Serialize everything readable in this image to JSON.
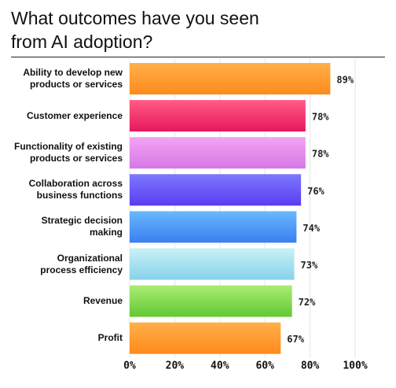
{
  "chart_data": {
    "type": "bar",
    "orientation": "horizontal",
    "title": "What outcomes have you seen\nfrom AI adoption?",
    "categories": [
      "Ability to develop new\nproducts or services",
      "Customer experience",
      "Functionality of existing\nproducts or services",
      "Collaboration across\nbusiness functions",
      "Strategic decision\nmaking",
      "Organizational\nprocess efficiency",
      "Revenue",
      "Profit"
    ],
    "values": [
      89,
      78,
      78,
      76,
      74,
      73,
      72,
      67
    ],
    "value_labels": [
      "89%",
      "78%",
      "78%",
      "76%",
      "74%",
      "73%",
      "72%",
      "67%"
    ],
    "colors": [
      [
        "#ffb04a",
        "#ff8a1c"
      ],
      [
        "#ff5c86",
        "#e8175d"
      ],
      [
        "#f3a4f3",
        "#d577e6"
      ],
      [
        "#7d78ff",
        "#5b3cf0"
      ],
      [
        "#6ab8ff",
        "#3a7ff0"
      ],
      [
        "#c9f1f6",
        "#86d2ea"
      ],
      [
        "#aaec74",
        "#62c933"
      ],
      [
        "#ffb04a",
        "#ff8a1c"
      ]
    ],
    "xlim": [
      0,
      100
    ],
    "xticks": [
      {
        "value": 0,
        "label": "0%"
      },
      {
        "value": 20,
        "label": "20%"
      },
      {
        "value": 40,
        "label": "40%"
      },
      {
        "value": 60,
        "label": "60%"
      },
      {
        "value": 80,
        "label": "80%"
      },
      {
        "value": 100,
        "label": "100%"
      }
    ],
    "grid": true
  }
}
